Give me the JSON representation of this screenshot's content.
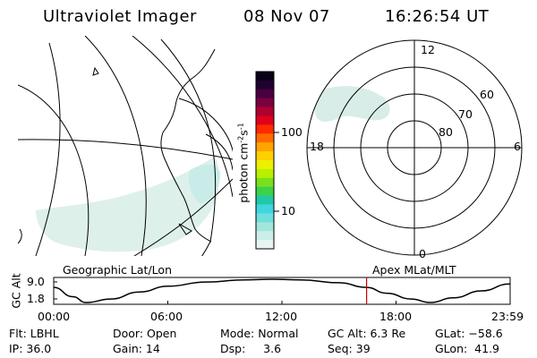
{
  "header": {
    "instrument": "Ultraviolet Imager",
    "date": "08 Nov 07",
    "time": "16:26:54 UT"
  },
  "colorbar": {
    "unit_base": "photon cm",
    "unit_exp1": "-2",
    "unit_mid": "s",
    "unit_exp2": "-1",
    "ticks": [
      {
        "label": "100",
        "value": 100
      },
      {
        "label": "10",
        "value": 10
      }
    ],
    "colors": [
      "#e6f4f2",
      "#cbeee8",
      "#a3e6dc",
      "#6fdedd",
      "#3fd6e0",
      "#20c8a8",
      "#3cd24a",
      "#78e01e",
      "#b8f000",
      "#eef000",
      "#ffd000",
      "#ffa400",
      "#ff6a00",
      "#ff2a00",
      "#e0001a",
      "#b00030",
      "#7a0040",
      "#4a0040",
      "#200030",
      "#0a0018"
    ]
  },
  "polar": {
    "mlt_labels": {
      "top": "12",
      "left": "18",
      "right": "6",
      "bottom": "0"
    },
    "lat_labels": [
      "60",
      "70",
      "80"
    ]
  },
  "map": {
    "left_label": "Geographic Lat/Lon",
    "right_label": "Apex MLat/MLT"
  },
  "altitude_plot": {
    "ylabel": "GC Alt",
    "ytick_top": "9.0",
    "ytick_bottom": "1.8",
    "xticks": [
      "00:00",
      "06:00",
      "12:00",
      "18:00",
      "23:59"
    ],
    "marker_hour": 16.45,
    "orbit_points": [
      [
        0,
        0.35
      ],
      [
        1.0,
        0.75
      ],
      [
        1.7,
        1.0
      ],
      [
        3,
        0.85
      ],
      [
        4.5,
        0.55
      ],
      [
        6,
        0.3
      ],
      [
        8,
        0.12
      ],
      [
        10,
        0.03
      ],
      [
        11.5,
        0.0
      ],
      [
        13,
        0.03
      ],
      [
        15,
        0.15
      ],
      [
        16.45,
        0.35
      ],
      [
        17.5,
        0.6
      ],
      [
        18.8,
        0.85
      ],
      [
        19.8,
        1.0
      ],
      [
        21,
        0.8
      ],
      [
        22.5,
        0.5
      ],
      [
        23.98,
        0.2
      ]
    ]
  },
  "info": {
    "flt": "Flt: LBHL",
    "ip": "IP: 36.0",
    "door": "Door: Open",
    "gain": "Gain: 14",
    "mode": "Mode: Normal",
    "dsp": "Dsp:     3.6",
    "gc_alt": "GC Alt: 6.3 Re",
    "seq": "Seq: 39",
    "glat": "GLat: −58.6",
    "glon": "GLon:  41.9"
  }
}
